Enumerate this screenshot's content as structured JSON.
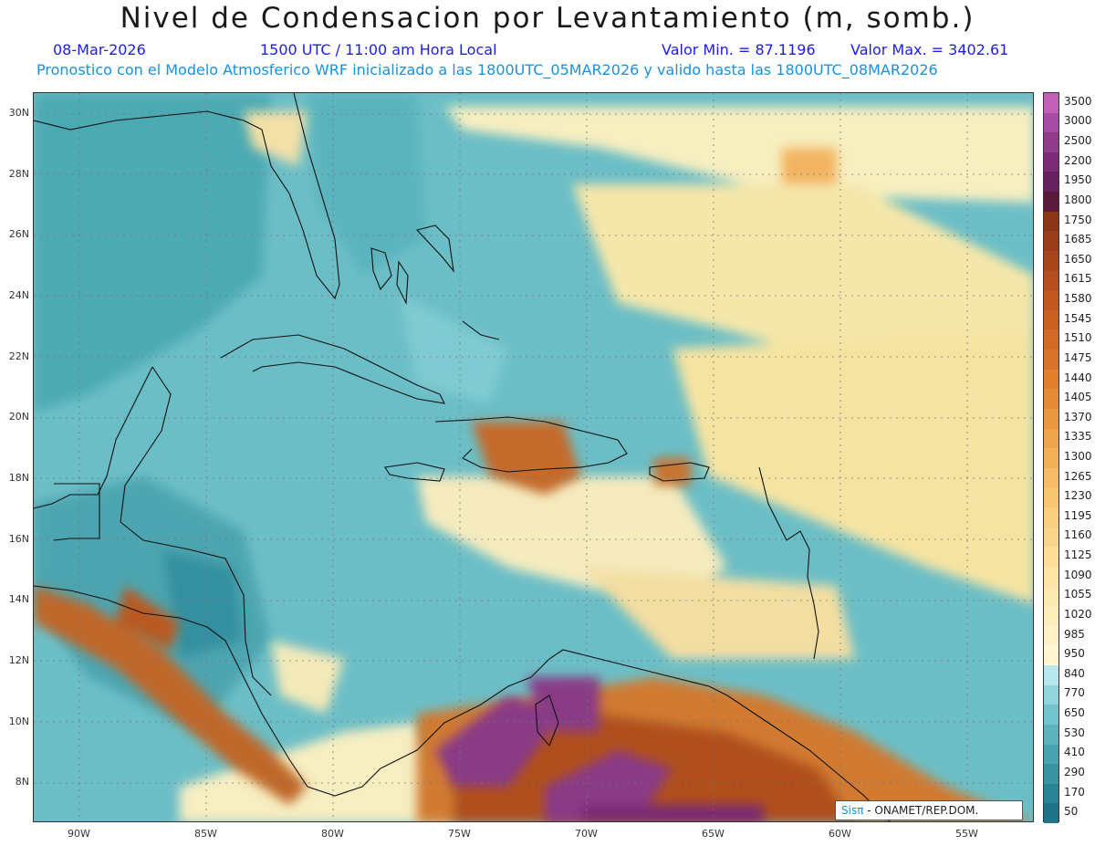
{
  "title": "Nivel de Condensacion por Levantamiento (m, somb.)",
  "header": {
    "date": "08-Mar-2026",
    "time": "1500 UTC / 11:00 am Hora Local",
    "min": "Valor Min. = 87.1196",
    "max": "Valor Max. = 3402.61",
    "model": "Pronostico con el Modelo Atmosferico WRF inicializado a las 1800UTC_05MAR2026 y valido hasta las  1800UTC_08MAR2026"
  },
  "lat_ticks": [
    "30N",
    "28N",
    "26N",
    "24N",
    "22N",
    "20N",
    "18N",
    "16N",
    "14N",
    "12N",
    "10N",
    "8N"
  ],
  "lon_ticks": [
    "90W",
    "85W",
    "80W",
    "75W",
    "70W",
    "65W",
    "60W",
    "55W"
  ],
  "legend": {
    "labels": [
      "3500",
      "3000",
      "2500",
      "2200",
      "1950",
      "1800",
      "1750",
      "1685",
      "1650",
      "1615",
      "1580",
      "1545",
      "1510",
      "1475",
      "1440",
      "1405",
      "1370",
      "1335",
      "1300",
      "1265",
      "1230",
      "1195",
      "1160",
      "1125",
      "1090",
      "1055",
      "1020",
      "985",
      "950",
      "840",
      "770",
      "650",
      "530",
      "410",
      "290",
      "170",
      "50"
    ],
    "colors": [
      "#c060b8",
      "#a64ca4",
      "#903c8c",
      "#7a2c74",
      "#66205e",
      "#5a1a3a",
      "#8a3418",
      "#9a3c18",
      "#a8461c",
      "#b44e1e",
      "#c05820",
      "#c86022",
      "#d06a26",
      "#d8742a",
      "#e0802e",
      "#e68c36",
      "#ea9840",
      "#eea44c",
      "#f2b058",
      "#f4bc66",
      "#f6c672",
      "#f8ce80",
      "#fad68c",
      "#fcde98",
      "#fde6a6",
      "#fdeab2",
      "#fdeebd",
      "#fff2c8",
      "#fff6d4",
      "#b8e8ee",
      "#92d4dc",
      "#74c4cc",
      "#5eb4be",
      "#4aa4b0",
      "#3a94a2",
      "#2c8494",
      "#1e7486"
    ]
  },
  "credit": {
    "brand": "Sisπ",
    "org": "- ONAMET/REP.DOM."
  }
}
